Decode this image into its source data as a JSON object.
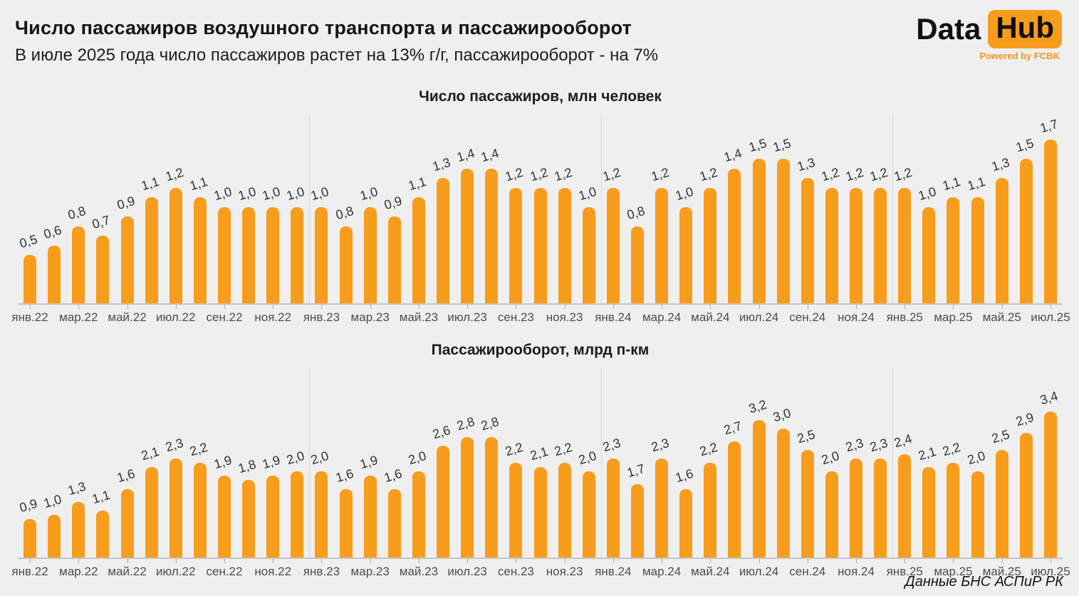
{
  "header": {
    "title": "Число пассажиров воздушного транспорта и пассажирооборот",
    "subtitle": "В июле 2025 года число пассажиров растет на 13% г/г, пассажирооборот - на 7%"
  },
  "logo": {
    "part1": "Data",
    "part2": "Hub",
    "tagline": "Powered by FCBK"
  },
  "footer": {
    "source": "Данные БНС АСПиР РК"
  },
  "colors": {
    "background": "#EFEFEF",
    "bar": "#F89C1C",
    "year_divider": "#D8D8D8",
    "axis_line": "#C6C6C6",
    "value_label": "#333333",
    "axis_label": "#4D4D4D",
    "logo_badge": "#F89C1C",
    "logo_tagline": "#F7941D"
  },
  "chart_data": [
    {
      "type": "bar",
      "title": "Число пассажиров, млн человек",
      "x": [
        "янв.22",
        "фев.22",
        "мар.22",
        "апр.22",
        "май.22",
        "июн.22",
        "июл.22",
        "авг.22",
        "сен.22",
        "окт.22",
        "ноя.22",
        "дек.22",
        "янв.23",
        "фев.23",
        "мар.23",
        "апр.23",
        "май.23",
        "июн.23",
        "июл.23",
        "авг.23",
        "сен.23",
        "окт.23",
        "ноя.23",
        "дек.23",
        "янв.24",
        "фев.24",
        "мар.24",
        "апр.24",
        "май.24",
        "июн.24",
        "июл.24",
        "авг.24",
        "сен.24",
        "окт.24",
        "ноя.24",
        "дек.24",
        "янв.25",
        "фев.25",
        "мар.25",
        "апр.25",
        "май.25",
        "июн.25",
        "июл.25"
      ],
      "values": [
        0.5,
        0.6,
        0.8,
        0.7,
        0.9,
        1.1,
        1.2,
        1.1,
        1.0,
        1.0,
        1.0,
        1.0,
        1.0,
        0.8,
        1.0,
        0.9,
        1.1,
        1.3,
        1.4,
        1.4,
        1.2,
        1.2,
        1.2,
        1.0,
        1.2,
        0.8,
        1.2,
        1.0,
        1.2,
        1.4,
        1.5,
        1.5,
        1.3,
        1.2,
        1.2,
        1.2,
        1.2,
        1.0,
        1.1,
        1.1,
        1.3,
        1.5,
        1.7
      ],
      "xtick_labels": [
        "янв.22",
        "мар.22",
        "май.22",
        "июл.22",
        "сен.22",
        "ноя.22",
        "янв.23",
        "мар.23",
        "май.23",
        "июл.23",
        "сен.23",
        "ноя.23",
        "янв.24",
        "мар.24",
        "май.24",
        "июл.24",
        "сен.24",
        "ноя.24",
        "янв.25",
        "мар.25",
        "май.25",
        "июл.25"
      ],
      "xtick_every": 2,
      "year_breaks": [
        12,
        24,
        36
      ],
      "ylim": [
        0,
        1.8
      ],
      "grid": false,
      "legend_position": "none",
      "value_label_decimal": "comma"
    },
    {
      "type": "bar",
      "title": "Пассажирооборот, млрд п-км",
      "x": [
        "янв.22",
        "фев.22",
        "мар.22",
        "апр.22",
        "май.22",
        "июн.22",
        "июл.22",
        "авг.22",
        "сен.22",
        "окт.22",
        "ноя.22",
        "дек.22",
        "янв.23",
        "фев.23",
        "мар.23",
        "апр.23",
        "май.23",
        "июн.23",
        "июл.23",
        "авг.23",
        "сен.23",
        "окт.23",
        "ноя.23",
        "дек.23",
        "янв.24",
        "фев.24",
        "мар.24",
        "апр.24",
        "май.24",
        "июн.24",
        "июл.24",
        "авг.24",
        "сен.24",
        "окт.24",
        "ноя.24",
        "дек.24",
        "янв.25",
        "фев.25",
        "мар.25",
        "апр.25",
        "май.25",
        "июн.25",
        "июл.25"
      ],
      "values": [
        0.9,
        1.0,
        1.3,
        1.1,
        1.6,
        2.1,
        2.3,
        2.2,
        1.9,
        1.8,
        1.9,
        2.0,
        2.0,
        1.6,
        1.9,
        1.6,
        2.0,
        2.6,
        2.8,
        2.8,
        2.2,
        2.1,
        2.2,
        2.0,
        2.3,
        1.7,
        2.3,
        1.6,
        2.2,
        2.7,
        3.2,
        3.0,
        2.5,
        2.0,
        2.3,
        2.3,
        2.4,
        2.1,
        2.2,
        2.0,
        2.5,
        2.9,
        3.4
      ],
      "xtick_labels": [
        "янв.22",
        "мар.22",
        "май.22",
        "июл.22",
        "сен.22",
        "ноя.22",
        "янв.23",
        "мар.23",
        "май.23",
        "июл.23",
        "сен.23",
        "ноя.23",
        "янв.24",
        "мар.24",
        "май.24",
        "июл.24",
        "сен.24",
        "ноя.24",
        "янв.25",
        "мар.25",
        "май.25",
        "июл.25"
      ],
      "xtick_every": 2,
      "year_breaks": [
        12,
        24,
        36
      ],
      "ylim": [
        0,
        3.6
      ],
      "grid": false,
      "legend_position": "none",
      "value_label_decimal": "comma"
    }
  ]
}
